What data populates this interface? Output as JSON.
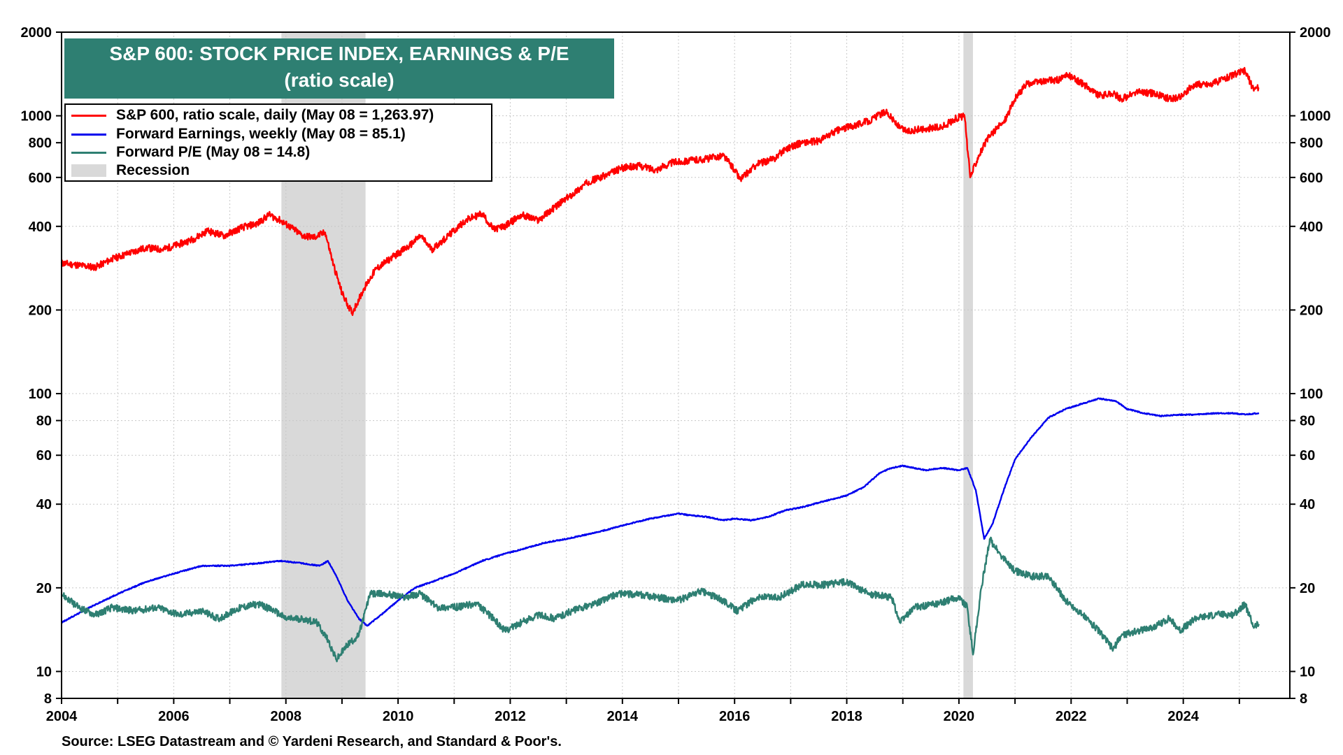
{
  "chart_data": {
    "type": "line",
    "title": "S&P 600: STOCK PRICE INDEX, EARNINGS & P/E",
    "subtitle": "(ratio scale)",
    "x_range": [
      2004,
      2025.9
    ],
    "x_ticks": [
      "2004",
      "2006",
      "2008",
      "2010",
      "2012",
      "2014",
      "2016",
      "2018",
      "2020",
      "2022",
      "2024"
    ],
    "y_scale": "log",
    "y_range": [
      8,
      2000
    ],
    "y_ticks_left": [
      "2000",
      "1000",
      "800",
      "600",
      "400",
      "200",
      "100",
      "80",
      "60",
      "40",
      "20",
      "10",
      "8"
    ],
    "y_ticks_right": [
      "2000",
      "1000",
      "800",
      "600",
      "400",
      "200",
      "100",
      "80",
      "60",
      "40",
      "20",
      "10",
      "8"
    ],
    "grid": true,
    "recessions": [
      [
        2007.92,
        2009.42
      ],
      [
        2020.08,
        2020.25
      ]
    ],
    "legend": [
      {
        "label": "S&P 600, ratio scale, daily (May 08 = 1,263.97)",
        "color": "#ff0000",
        "kind": "line"
      },
      {
        "label": "Forward Earnings, weekly (May 08 = 85.1)",
        "color": "#0000ee",
        "kind": "line"
      },
      {
        "label": "Forward P/E (May 08 = 14.8)",
        "color": "#2e7f72",
        "kind": "line"
      },
      {
        "label": "Recession",
        "color": "#d9d9d9",
        "kind": "box"
      }
    ],
    "series": [
      {
        "name": "S&P 600",
        "color": "#ff0000",
        "x": [
          2004.0,
          2004.3,
          2004.6,
          2004.9,
          2005.2,
          2005.5,
          2005.8,
          2006.1,
          2006.35,
          2006.6,
          2006.9,
          2007.2,
          2007.5,
          2007.7,
          2007.9,
          2008.1,
          2008.3,
          2008.5,
          2008.7,
          2008.85,
          2009.0,
          2009.18,
          2009.4,
          2009.6,
          2009.9,
          2010.2,
          2010.4,
          2010.6,
          2010.9,
          2011.2,
          2011.5,
          2011.7,
          2011.9,
          2012.2,
          2012.5,
          2012.8,
          2013.1,
          2013.4,
          2013.7,
          2014.0,
          2014.3,
          2014.6,
          2014.9,
          2015.2,
          2015.5,
          2015.8,
          2016.0,
          2016.1,
          2016.4,
          2016.7,
          2016.9,
          2017.2,
          2017.5,
          2017.8,
          2018.1,
          2018.4,
          2018.7,
          2018.95,
          2019.1,
          2019.4,
          2019.7,
          2019.95,
          2020.1,
          2020.2,
          2020.35,
          2020.55,
          2020.8,
          2021.0,
          2021.2,
          2021.5,
          2021.8,
          2021.95,
          2022.3,
          2022.5,
          2022.75,
          2022.9,
          2023.2,
          2023.5,
          2023.75,
          2023.95,
          2024.2,
          2024.5,
          2024.8,
          2024.95,
          2025.1,
          2025.25,
          2025.35
        ],
        "values": [
          295,
          290,
          285,
          305,
          320,
          335,
          330,
          345,
          360,
          385,
          370,
          395,
          410,
          440,
          420,
          395,
          370,
          365,
          380,
          290,
          230,
          195,
          240,
          280,
          310,
          340,
          370,
          330,
          370,
          420,
          445,
          390,
          400,
          440,
          420,
          470,
          520,
          580,
          610,
          650,
          660,
          640,
          680,
          690,
          700,
          720,
          640,
          590,
          670,
          700,
          760,
          800,
          810,
          880,
          920,
          960,
          1040,
          900,
          880,
          900,
          910,
          980,
          1000,
          600,
          720,
          850,
          950,
          1150,
          1300,
          1330,
          1350,
          1400,
          1270,
          1180,
          1200,
          1150,
          1220,
          1200,
          1150,
          1170,
          1300,
          1300,
          1380,
          1420,
          1450,
          1250,
          1263.97
        ]
      },
      {
        "name": "Forward Earnings",
        "color": "#0000ee",
        "x": [
          2004.0,
          2004.5,
          2005.0,
          2005.5,
          2006.0,
          2006.5,
          2007.0,
          2007.5,
          2007.9,
          2008.3,
          2008.6,
          2008.75,
          2008.9,
          2009.1,
          2009.3,
          2009.45,
          2009.7,
          2010.0,
          2010.3,
          2010.6,
          2011.0,
          2011.5,
          2011.9,
          2012.2,
          2012.6,
          2013.0,
          2013.5,
          2014.0,
          2014.5,
          2015.0,
          2015.2,
          2015.5,
          2015.8,
          2016.0,
          2016.3,
          2016.6,
          2016.9,
          2017.2,
          2017.6,
          2018.0,
          2018.3,
          2018.6,
          2018.8,
          2019.0,
          2019.4,
          2019.7,
          2020.0,
          2020.15,
          2020.3,
          2020.45,
          2020.6,
          2020.8,
          2021.0,
          2021.3,
          2021.6,
          2021.9,
          2022.2,
          2022.5,
          2022.8,
          2023.0,
          2023.3,
          2023.6,
          2023.9,
          2024.2,
          2024.6,
          2024.9,
          2025.1,
          2025.35
        ],
        "values": [
          15,
          17,
          19,
          21,
          22.5,
          24,
          24,
          24.5,
          25,
          24.5,
          24,
          25,
          22,
          18,
          15.5,
          14.6,
          16,
          18,
          20,
          21,
          22.5,
          25,
          26.5,
          27.5,
          29,
          30,
          31.5,
          33.5,
          35.5,
          37,
          36.5,
          36,
          35,
          35.5,
          35,
          36,
          38,
          39,
          41,
          43,
          46,
          52,
          54,
          55,
          53,
          54,
          53,
          54,
          45,
          30,
          34,
          45,
          58,
          70,
          82,
          88,
          92,
          96,
          94,
          88,
          85,
          83,
          84,
          84,
          85,
          85,
          84,
          85.1
        ]
      },
      {
        "name": "Forward P/E",
        "color": "#2e7f72",
        "x": [
          2004.0,
          2004.3,
          2004.6,
          2004.9,
          2005.3,
          2005.7,
          2006.1,
          2006.5,
          2006.8,
          2007.2,
          2007.5,
          2007.8,
          2008.0,
          2008.3,
          2008.55,
          2008.75,
          2008.9,
          2009.1,
          2009.3,
          2009.5,
          2009.8,
          2010.1,
          2010.4,
          2010.7,
          2011.0,
          2011.4,
          2011.7,
          2011.9,
          2012.2,
          2012.5,
          2012.8,
          2013.1,
          2013.5,
          2013.9,
          2014.2,
          2014.6,
          2015.0,
          2015.4,
          2015.8,
          2016.05,
          2016.4,
          2016.8,
          2017.2,
          2017.6,
          2018.0,
          2018.4,
          2018.8,
          2018.95,
          2019.2,
          2019.6,
          2020.0,
          2020.15,
          2020.25,
          2020.4,
          2020.55,
          2020.75,
          2021.0,
          2021.3,
          2021.6,
          2021.9,
          2022.2,
          2022.5,
          2022.75,
          2022.9,
          2023.2,
          2023.5,
          2023.75,
          2023.95,
          2024.2,
          2024.6,
          2024.9,
          2025.1,
          2025.25,
          2025.35
        ],
        "values": [
          19,
          17,
          16,
          17,
          16.5,
          17,
          16,
          16.5,
          15.5,
          17,
          17.5,
          16.5,
          15.5,
          15.5,
          15,
          13,
          11,
          12.5,
          13.5,
          19,
          19,
          18.5,
          19,
          17,
          17,
          17.5,
          15.5,
          14,
          15,
          16,
          15.5,
          16.5,
          17.5,
          19,
          19,
          18.5,
          18,
          19.5,
          18,
          16.5,
          18.5,
          18.5,
          20.5,
          20.5,
          21,
          19,
          18.5,
          15,
          17,
          17.5,
          18.5,
          17,
          11.5,
          20,
          30,
          26,
          23,
          22,
          22,
          18,
          16,
          14,
          12,
          13.5,
          14,
          14.5,
          15.5,
          14,
          15.5,
          16,
          16,
          17.5,
          14.5,
          14.8
        ]
      }
    ]
  },
  "source": "Source: LSEG Datastream and © Yardeni Research, and Standard & Poor's."
}
